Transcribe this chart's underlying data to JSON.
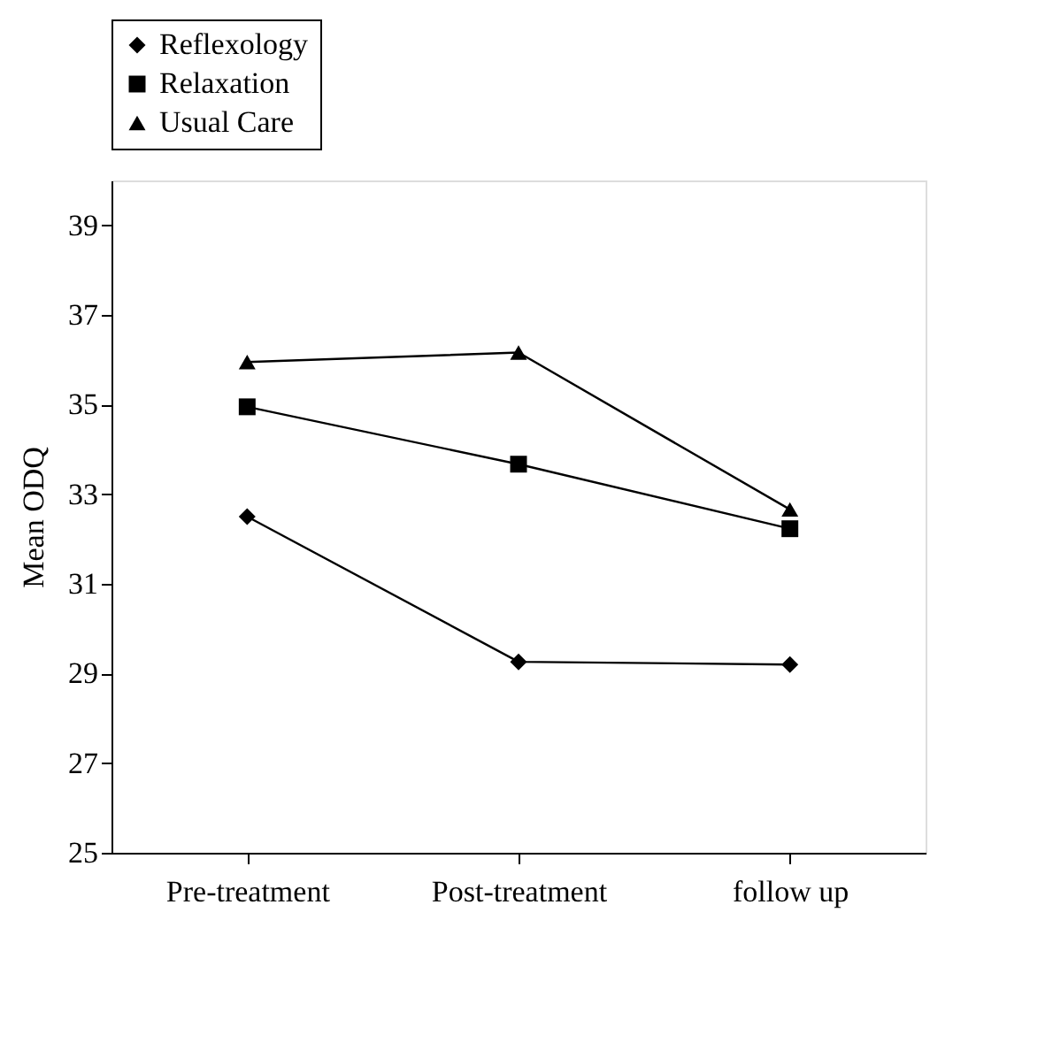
{
  "chart_data": {
    "type": "line",
    "ylabel": "Mean ODQ",
    "categories": [
      "Pre-treatment",
      "Post-treatment",
      "follow up"
    ],
    "series": [
      {
        "name": "Reflexology",
        "color": "#000000",
        "marker": "diamond",
        "values": [
          32.5,
          29.26,
          29.2
        ]
      },
      {
        "name": "Relaxation",
        "color": "#000000",
        "marker": "square",
        "values": [
          34.95,
          33.67,
          32.23
        ]
      },
      {
        "name": "Usual Care",
        "color": "#000000",
        "marker": "triangle",
        "values": [
          35.95,
          36.16,
          32.66
        ]
      }
    ],
    "ylim": [
      25,
      40
    ],
    "yticks": [
      25,
      27,
      29,
      31,
      33,
      35,
      37,
      39
    ],
    "grid": false,
    "legend": "top",
    "line_style": "solid"
  }
}
